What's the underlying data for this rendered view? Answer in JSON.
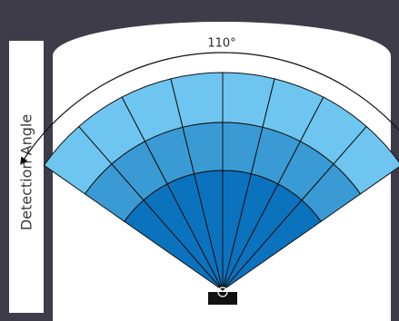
{
  "diagram": {
    "side_label": "Detection Angle",
    "angle_label": "110°",
    "colors": {
      "background": "#3f3c4a",
      "panel": "#ffffff",
      "outer_band": "#6ec5ef",
      "middle_band": "#3a9ad4",
      "inner_band": "#0b72be",
      "lines": "#111111",
      "sensor": "#111111"
    },
    "icons": [
      "double-headed-arc-arrow-icon",
      "sensor-icon"
    ]
  }
}
